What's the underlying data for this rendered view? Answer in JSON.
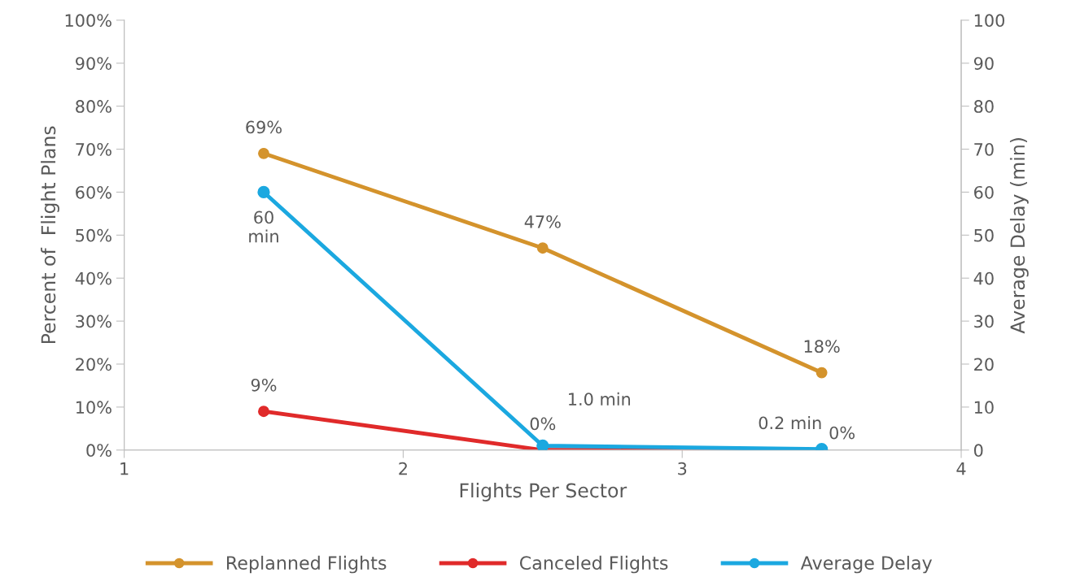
{
  "chart_data": {
    "type": "line",
    "xlabel": "Flights Per Sector",
    "ylabel": "Percent of  Flight Plans",
    "y2label": "Average Delay (min)",
    "x": [
      1.5,
      2.5,
      3.5
    ],
    "series": [
      {
        "name": "Replanned Flights",
        "color": "#d4932c",
        "values": [
          69,
          47,
          18
        ],
        "value_labels": [
          "69%",
          "47%",
          "18%"
        ]
      },
      {
        "name": "Canceled Flights",
        "color": "#e02a2a",
        "values": [
          9,
          0,
          0
        ],
        "value_labels": [
          "9%",
          "0%",
          "0%"
        ]
      },
      {
        "name": "Average Delay",
        "color": "#1ba8e0",
        "axis": "y2",
        "values": [
          60,
          1.0,
          0.2
        ],
        "value_labels": [
          "60\nmin",
          "1.0 min",
          "0.2 min"
        ]
      }
    ],
    "xlim": [
      1,
      4
    ],
    "xticks": [
      1,
      2,
      3,
      4
    ],
    "ylim": [
      0,
      100
    ],
    "yticks": [
      {
        "value": 0,
        "label": "0%"
      },
      {
        "value": 10,
        "label": "10%"
      },
      {
        "value": 20,
        "label": "20%"
      },
      {
        "value": 30,
        "label": "30%"
      },
      {
        "value": 40,
        "label": "40%"
      },
      {
        "value": 50,
        "label": "50%"
      },
      {
        "value": 60,
        "label": "60%"
      },
      {
        "value": 70,
        "label": "70%"
      },
      {
        "value": 80,
        "label": "80%"
      },
      {
        "value": 90,
        "label": "90%"
      },
      {
        "value": 100,
        "label": "100%"
      }
    ],
    "y2lim": [
      0,
      100
    ],
    "y2ticks": [
      0,
      10,
      20,
      30,
      40,
      50,
      60,
      70,
      80,
      90,
      100
    ],
    "grid": false,
    "legend": "bottom",
    "marker": "circle",
    "line_style": "solid"
  }
}
